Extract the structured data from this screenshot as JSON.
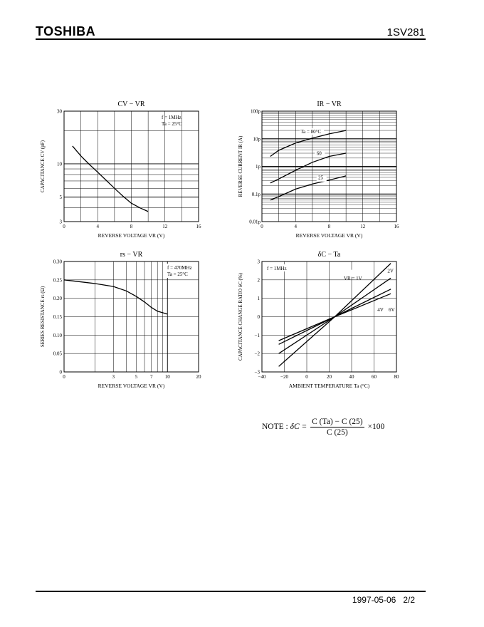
{
  "header": {
    "brand": "TOSHIBA",
    "part_number": "1SV281"
  },
  "footer": {
    "date": "1997-05-06",
    "page": "2/2"
  },
  "note": {
    "label": "NOTE :",
    "symbol": "δC =",
    "numerator": "C (Ta) − C (25)",
    "denominator": "C (25)",
    "factor": "×100"
  },
  "chart_data": [
    {
      "id": "cv-vr",
      "type": "line",
      "title": "CV − VR",
      "xlabel": "REVERSE VOLTAGE VR (V)",
      "ylabel": "CAPACITANCE CV (pF)",
      "xscale": "linear",
      "yscale": "log",
      "xlim": [
        0,
        16
      ],
      "ylim": [
        3,
        30
      ],
      "xticks": [
        0,
        4,
        8,
        12,
        16
      ],
      "yticks": [
        3,
        5,
        10,
        30
      ],
      "annotations": [
        "f = 1MHz",
        "Ta = 25°C"
      ],
      "series": [
        {
          "x": [
            1,
            2,
            3,
            4,
            5,
            6,
            7,
            8,
            9,
            10
          ],
          "y": [
            14.5,
            11.8,
            9.9,
            8.4,
            7.1,
            6.0,
            5.1,
            4.4,
            4.0,
            3.7
          ]
        }
      ]
    },
    {
      "id": "ir-vr",
      "type": "line",
      "title": "IR − VR",
      "xlabel": "REVERSE VOLTAGE VR (V)",
      "ylabel": "REVERSE CURRENT IR (A)",
      "xscale": "linear",
      "yscale": "log",
      "xlim": [
        0,
        16
      ],
      "ylim": [
        1e-14,
        1e-10
      ],
      "xticks": [
        0,
        4,
        8,
        12,
        16
      ],
      "yticks": [
        "0.01p",
        "0.1p",
        "1p",
        "10p",
        "100p"
      ],
      "annotations": [
        "Ta = 80°C",
        "60",
        "25"
      ],
      "series": [
        {
          "name": "Ta = 80°C",
          "x": [
            1,
            2,
            4,
            6,
            8,
            10
          ],
          "y": [
            2.3e-12,
            3.8e-12,
            7e-12,
            1.05e-11,
            1.5e-11,
            2e-11
          ]
        },
        {
          "name": "60",
          "x": [
            1,
            2,
            4,
            6,
            8,
            10
          ],
          "y": [
            2.5e-13,
            3.5e-13,
            7.2e-13,
            1.4e-12,
            2.3e-12,
            3e-12
          ]
        },
        {
          "name": "25",
          "x": [
            1,
            2,
            4,
            6,
            8,
            10
          ],
          "y": [
            6e-14,
            8e-14,
            1.5e-13,
            2.3e-13,
            3.2e-13,
            4.5e-13
          ]
        }
      ]
    },
    {
      "id": "rs-vr",
      "type": "line",
      "title": "rs − VR",
      "xlabel": "REVERSE VOLTAGE VR (V)",
      "ylabel": "SERIES RESISTANCE rs (Ω)",
      "xscale": "log",
      "yscale": "linear",
      "xlim": [
        0,
        20
      ],
      "ylim": [
        0,
        0.3
      ],
      "xticks": [
        0,
        3,
        5,
        7,
        10,
        20
      ],
      "yticks": [
        0,
        0.05,
        0.1,
        0.15,
        0.2,
        0.25,
        0.3
      ],
      "annotations": [
        "f = 470MHz",
        "Ta = 25°C"
      ],
      "series": [
        {
          "x": [
            1,
            2,
            3,
            4,
            5,
            6,
            7,
            8,
            10
          ],
          "y": [
            0.25,
            0.24,
            0.232,
            0.22,
            0.205,
            0.19,
            0.175,
            0.165,
            0.157
          ]
        }
      ]
    },
    {
      "id": "dc-ta",
      "type": "line",
      "title": "δC − Ta",
      "xlabel": "AMBIENT TEMPERATURE Ta (°C)",
      "ylabel": "CAPACITANCE CHANGE RATIO δC (%)",
      "xscale": "linear",
      "yscale": "linear",
      "xlim": [
        -40,
        80
      ],
      "ylim": [
        -3,
        3
      ],
      "xticks": [
        -40,
        -20,
        0,
        20,
        40,
        60,
        80
      ],
      "yticks": [
        -3,
        -2,
        -1,
        0,
        1,
        2,
        3
      ],
      "annotations": [
        "f = 1MHz",
        "VR = 1V",
        "2V",
        "4V",
        "6V"
      ],
      "series": [
        {
          "name": "VR = 1V",
          "x": [
            -25,
            25,
            75
          ],
          "y": [
            -2.7,
            0,
            2.9
          ]
        },
        {
          "name": "2V",
          "x": [
            -25,
            25,
            75
          ],
          "y": [
            -2.0,
            0,
            2.1
          ]
        },
        {
          "name": "4V",
          "x": [
            -25,
            25,
            75
          ],
          "y": [
            -1.5,
            0,
            1.5
          ]
        },
        {
          "name": "6V",
          "x": [
            -25,
            25,
            75
          ],
          "y": [
            -1.3,
            0,
            1.25
          ]
        }
      ]
    }
  ]
}
